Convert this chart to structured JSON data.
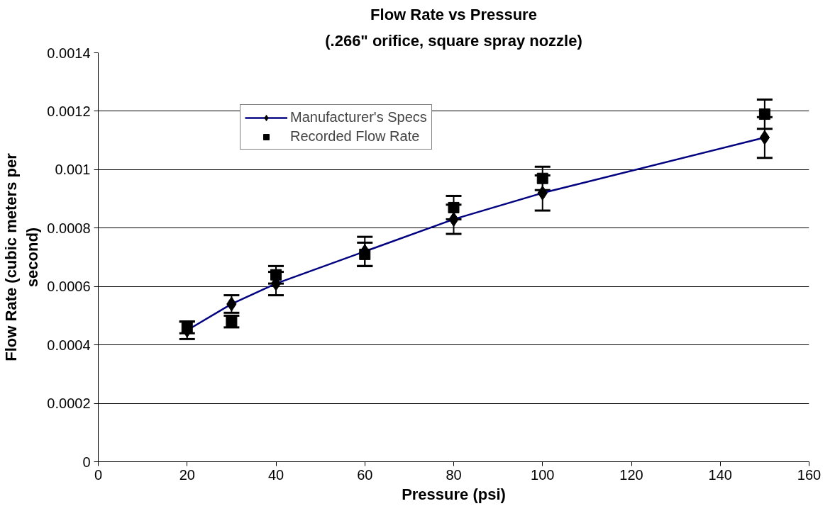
{
  "chart_data": {
    "type": "line",
    "title": "Flow Rate vs Pressure",
    "subtitle": "(.266\" orifice, square spray nozzle)",
    "xlabel": "Pressure (psi)",
    "ylabel": "Flow Rate (cubic meters per second)",
    "x": [
      20,
      30,
      40,
      60,
      80,
      100,
      150
    ],
    "series": [
      {
        "name": "Manufacturer's Specs",
        "color": "#000080",
        "marker": "diamond",
        "values": [
          0.00045,
          0.00054,
          0.00061,
          0.00072,
          0.00083,
          0.00092,
          0.00111
        ],
        "errors": [
          3e-05,
          3e-05,
          4e-05,
          5e-05,
          5e-05,
          6e-05,
          7e-05
        ]
      },
      {
        "name": "Recorded Flow Rate",
        "type": "scatter",
        "color": "#000000",
        "marker": "square",
        "values": [
          0.00046,
          0.00048,
          0.00064,
          0.00071,
          0.00087,
          0.00097,
          0.00119
        ],
        "errors": [
          2e-05,
          2e-05,
          3e-05,
          4e-05,
          4e-05,
          4e-05,
          5e-05
        ]
      }
    ],
    "xlim": [
      0,
      160
    ],
    "xticks": [
      0,
      20,
      40,
      60,
      80,
      100,
      120,
      140,
      160
    ],
    "ylim": [
      0,
      0.0014
    ],
    "yticks": [
      0,
      0.0002,
      0.0004,
      0.0006,
      0.0008,
      0.001,
      0.0012,
      0.0014
    ],
    "grid": "y",
    "legend": "top left"
  }
}
